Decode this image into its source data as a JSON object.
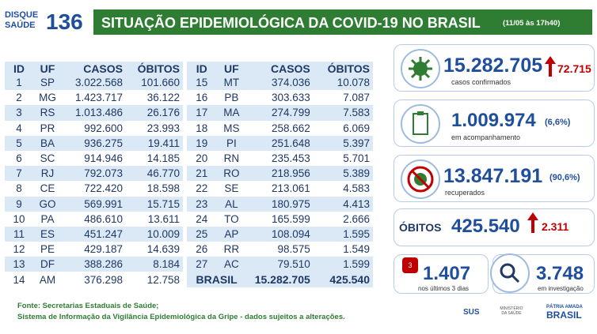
{
  "header": {
    "logo_line1": "DISQUE",
    "logo_line2": "SAÚDE",
    "logo_number": "136",
    "title": "SITUAÇÃO EPIDEMIOLÓGICA DA COVID-19 NO BRASIL",
    "date": "(11/05 às 17h40)"
  },
  "tables": {
    "left": {
      "columns": [
        "ID",
        "UF",
        "CASOS",
        "ÓBITOS"
      ],
      "rows": [
        [
          "1",
          "SP",
          "3.022.568",
          "101.660"
        ],
        [
          "2",
          "MG",
          "1.423.717",
          "36.122"
        ],
        [
          "3",
          "RS",
          "1.013.486",
          "26.176"
        ],
        [
          "4",
          "PR",
          "992.600",
          "23.993"
        ],
        [
          "5",
          "BA",
          "936.275",
          "19.411"
        ],
        [
          "6",
          "SC",
          "914.946",
          "14.185"
        ],
        [
          "7",
          "RJ",
          "792.073",
          "46.770"
        ],
        [
          "8",
          "CE",
          "722.420",
          "18.598"
        ],
        [
          "9",
          "GO",
          "569.991",
          "15.715"
        ],
        [
          "10",
          "PA",
          "486.610",
          "13.611"
        ],
        [
          "11",
          "ES",
          "451.247",
          "10.009"
        ],
        [
          "12",
          "PE",
          "429.187",
          "14.639"
        ],
        [
          "13",
          "DF",
          "388.286",
          "8.184"
        ],
        [
          "14",
          "AM",
          "376.298",
          "12.758"
        ]
      ]
    },
    "right": {
      "columns": [
        "ID",
        "UF",
        "CASOS",
        "ÓBITOS"
      ],
      "rows": [
        [
          "15",
          "MT",
          "374.036",
          "10.078"
        ],
        [
          "16",
          "PB",
          "303.633",
          "7.087"
        ],
        [
          "17",
          "MA",
          "274.799",
          "7.583"
        ],
        [
          "18",
          "MS",
          "258.662",
          "6.069"
        ],
        [
          "19",
          "PI",
          "251.648",
          "5.397"
        ],
        [
          "20",
          "RN",
          "235.453",
          "5.701"
        ],
        [
          "21",
          "RO",
          "218.956",
          "5.389"
        ],
        [
          "22",
          "SE",
          "213.061",
          "4.583"
        ],
        [
          "23",
          "AL",
          "180.975",
          "4.413"
        ],
        [
          "24",
          "TO",
          "165.599",
          "2.666"
        ],
        [
          "25",
          "AP",
          "108.094",
          "1.595"
        ],
        [
          "26",
          "RR",
          "98.575",
          "1.549"
        ],
        [
          "27",
          "AC",
          "79.510",
          "1.599"
        ]
      ],
      "total": [
        "BRASIL",
        "15.282.705",
        "425.540"
      ]
    }
  },
  "stats": {
    "confirmed": {
      "value": "15.282.705",
      "increase": "72.715",
      "caption": "casos confirmados"
    },
    "monitoring": {
      "value": "1.009.974",
      "percent": "(6,6%)",
      "caption": "em acompanhamento"
    },
    "recovered": {
      "value": "13.847.191",
      "percent": "(90,6%)",
      "caption": "recuperados"
    },
    "deaths": {
      "label": "ÓBITOS",
      "value": "425.540",
      "increase": "2.311"
    },
    "recent": {
      "value": "1.407",
      "caption": "nos últimos 3 dias",
      "icon_text": "3"
    },
    "investigation": {
      "value": "3.748",
      "caption": "em investigação"
    }
  },
  "footer": {
    "source1": "Fonte: Secretarias Estaduais de Saúde;",
    "source2": "Sistema de Informação da Vigilância Epidemiológica da Gripe - dados sujeitos a alterações.",
    "logo_sus": "SUS",
    "logo_ministry": "MINISTÉRIO DA SAÚDE",
    "logo_gov1": "PÁTRIA AMADA",
    "logo_gov2": "BRASIL"
  }
}
